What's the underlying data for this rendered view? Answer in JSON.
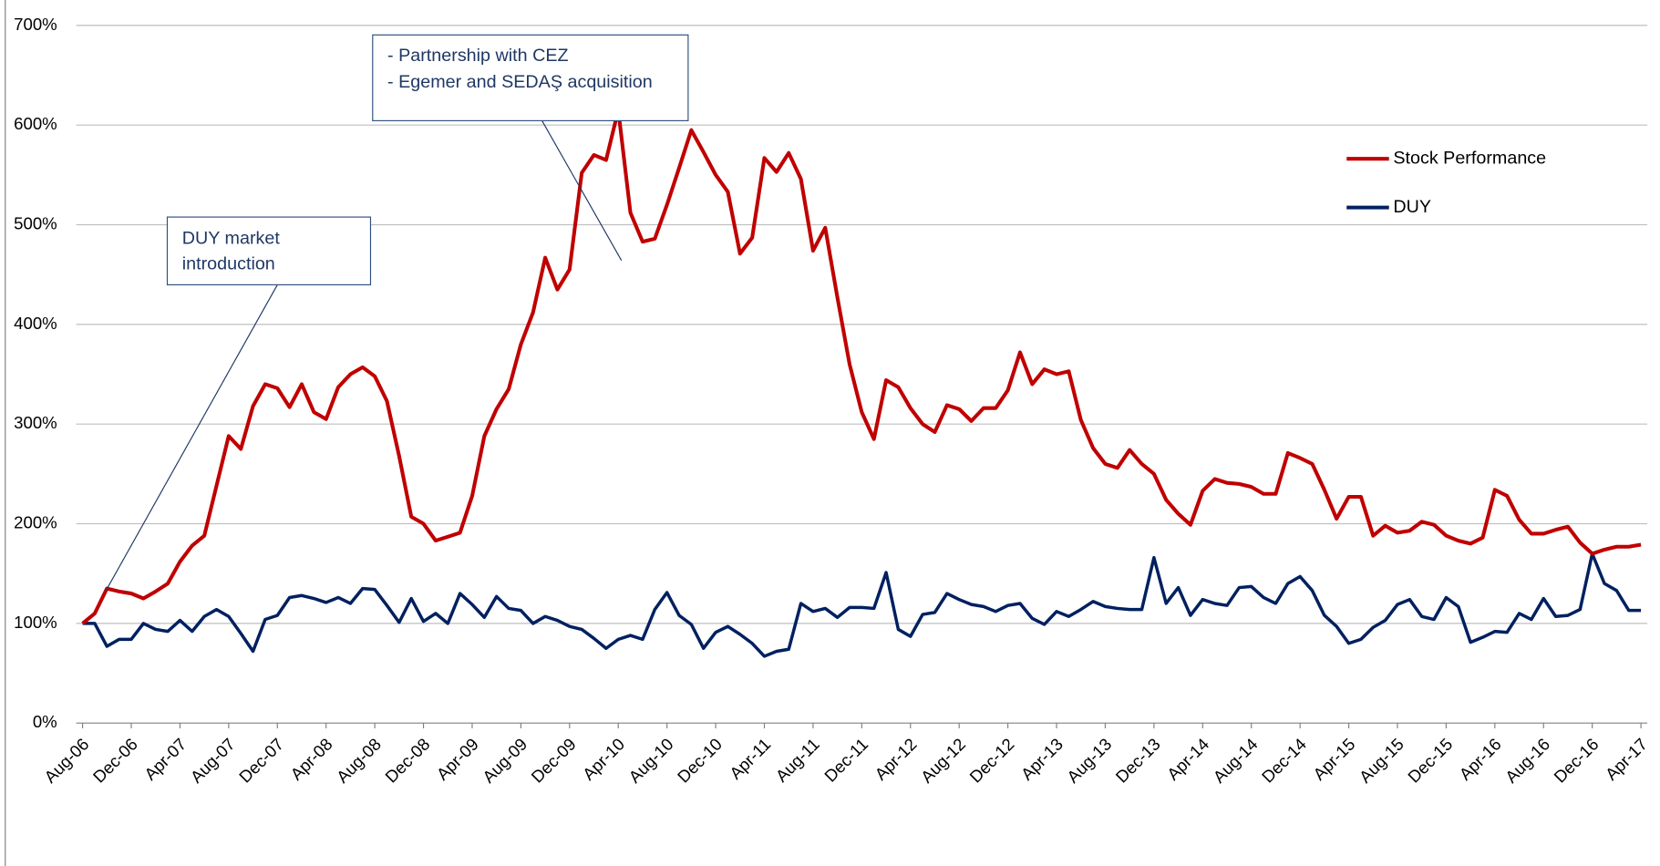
{
  "chart_data": {
    "type": "line",
    "categories": [
      "Aug-06",
      null,
      null,
      null,
      "Dec-06",
      null,
      null,
      null,
      "Apr-07",
      null,
      null,
      null,
      "Aug-07",
      null,
      null,
      null,
      "Dec-07",
      null,
      null,
      null,
      "Apr-08",
      null,
      null,
      null,
      "Aug-08",
      null,
      null,
      null,
      "Dec-08",
      null,
      null,
      null,
      "Apr-09",
      null,
      null,
      null,
      "Aug-09",
      null,
      null,
      null,
      "Dec-09",
      null,
      null,
      null,
      "Apr-10",
      null,
      null,
      null,
      "Aug-10",
      null,
      null,
      null,
      "Dec-10",
      null,
      null,
      null,
      "Apr-11",
      null,
      null,
      null,
      "Aug-11",
      null,
      null,
      null,
      "Dec-11",
      null,
      null,
      null,
      "Apr-12",
      null,
      null,
      null,
      "Aug-12",
      null,
      null,
      null,
      "Dec-12",
      null,
      null,
      null,
      "Apr-13",
      null,
      null,
      null,
      "Aug-13",
      null,
      null,
      null,
      "Dec-13",
      null,
      null,
      null,
      "Apr-14",
      null,
      null,
      null,
      "Aug-14",
      null,
      null,
      null,
      "Dec-14",
      null,
      null,
      null,
      "Apr-15",
      null,
      null,
      null,
      "Aug-15",
      null,
      null,
      null,
      "Dec-15",
      null,
      null,
      null,
      "Apr-16",
      null,
      null,
      null,
      "Aug-16",
      null,
      null,
      null,
      "Dec-16",
      null,
      null,
      null,
      "Apr-17"
    ],
    "series": [
      {
        "name": "Stock Performance",
        "color": "#c00000",
        "values": [
          100,
          110,
          135,
          132,
          130,
          125,
          132,
          140,
          162,
          178,
          188,
          238,
          288,
          275,
          318,
          340,
          336,
          317,
          340,
          312,
          305,
          337,
          350,
          357,
          348,
          323,
          268,
          207,
          200,
          183,
          187,
          191,
          228,
          288,
          315,
          335,
          380,
          412,
          467,
          435,
          455,
          552,
          570,
          565,
          615,
          512,
          483,
          486,
          520,
          557,
          595,
          573,
          550,
          533,
          471,
          487,
          567,
          553,
          572,
          546,
          474,
          497,
          427,
          360,
          312,
          285,
          344,
          337,
          316,
          300,
          292,
          319,
          315,
          303,
          316,
          316,
          334,
          372,
          340,
          355,
          350,
          353,
          304,
          276,
          260,
          256,
          274,
          260,
          250,
          224,
          210,
          199,
          233,
          245,
          241,
          240,
          237,
          230,
          230,
          271,
          266,
          260,
          234,
          205,
          227,
          227,
          188,
          198,
          191,
          193,
          202,
          199,
          188,
          183,
          180,
          186,
          234,
          228,
          204,
          190,
          190,
          194,
          197,
          181,
          170,
          174,
          177,
          177,
          179
        ]
      },
      {
        "name": "DUY",
        "color": "#002060",
        "values": [
          100,
          100,
          77,
          84,
          84,
          100,
          94,
          92,
          103,
          92,
          107,
          114,
          107,
          90,
          72,
          104,
          108,
          126,
          128,
          125,
          121,
          126,
          120,
          135,
          134,
          118,
          101,
          125,
          102,
          110,
          100,
          130,
          119,
          106,
          127,
          115,
          113,
          100,
          107,
          103,
          97,
          94,
          85,
          75,
          84,
          88,
          84,
          114,
          131,
          108,
          99,
          75,
          91,
          97,
          89,
          80,
          67,
          72,
          74,
          120,
          112,
          115,
          106,
          116,
          116,
          115,
          151,
          94,
          87,
          109,
          111,
          130,
          124,
          119,
          117,
          112,
          118,
          120,
          105,
          99,
          112,
          107,
          114,
          122,
          117,
          115,
          114,
          114,
          166,
          120,
          136,
          108,
          124,
          120,
          118,
          136,
          137,
          126,
          120,
          140,
          147,
          133,
          108,
          97,
          80,
          84,
          96,
          103,
          119,
          124,
          107,
          104,
          126,
          117,
          81,
          86,
          92,
          91,
          110,
          104,
          125,
          107,
          108,
          114,
          170,
          140,
          133,
          113,
          113
        ]
      }
    ],
    "ylim": [
      0,
      700
    ],
    "yticks": [
      {
        "value": 0,
        "label": "0%"
      },
      {
        "value": 100,
        "label": "100%"
      },
      {
        "value": 200,
        "label": "200%"
      },
      {
        "value": 300,
        "label": "300%"
      },
      {
        "value": 400,
        "label": "400%"
      },
      {
        "value": 500,
        "label": "500%"
      },
      {
        "value": 600,
        "label": "600%"
      },
      {
        "value": 700,
        "label": "700%"
      }
    ],
    "grid": true,
    "legend": "upper right",
    "annotations": [
      {
        "lines": [
          "DUY market",
          "introduction"
        ]
      },
      {
        "lines": [
          "- Partnership  with CEZ",
          "- Egemer  and SEDAŞ acquisition"
        ]
      }
    ]
  }
}
